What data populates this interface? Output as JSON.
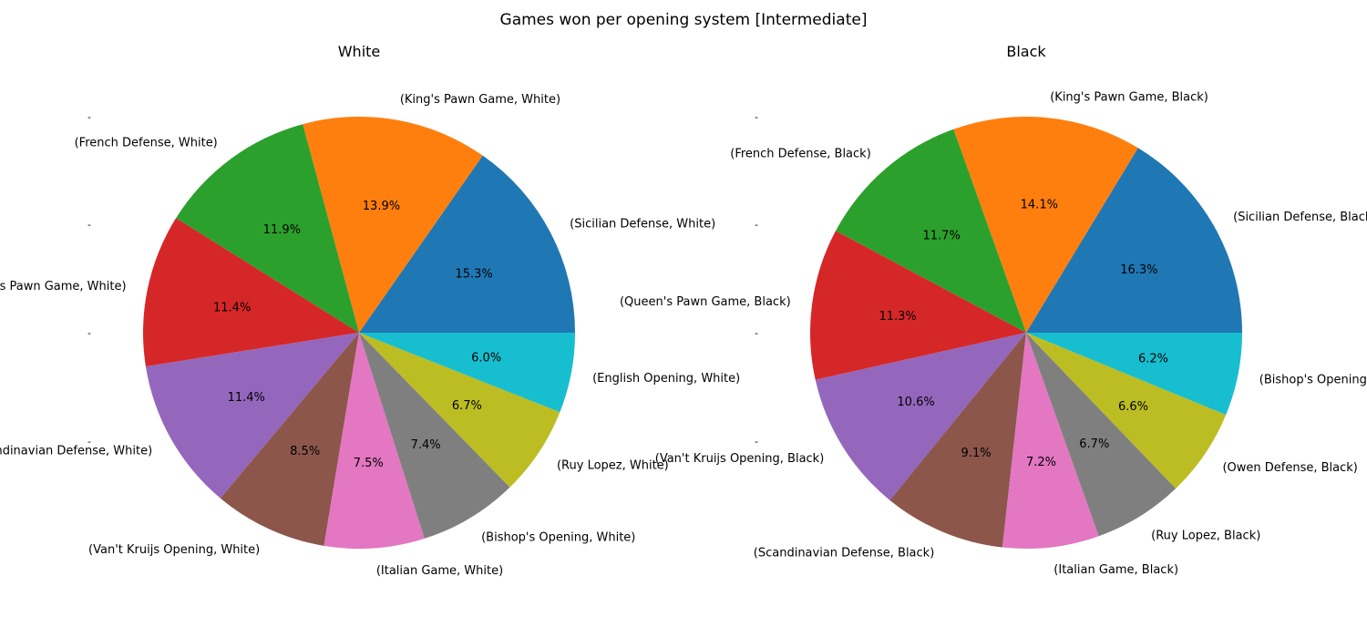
{
  "figure": {
    "title": "Games won per opening system [Intermediate]"
  },
  "chart_data": [
    {
      "type": "pie",
      "title": "White",
      "ylabel": "-",
      "labels": [
        "(Sicilian Defense, White)",
        "(King's Pawn Game, White)",
        "(French Defense, White)",
        "(Queen's Pawn Game, White)",
        "(Scandinavian Defense, White)",
        "(Van't Kruijs Opening, White)",
        "(Italian Game, White)",
        "(Bishop's Opening, White)",
        "(Ruy Lopez, White)",
        "(English Opening, White)"
      ],
      "values": [
        15.3,
        13.9,
        11.9,
        11.4,
        11.4,
        8.5,
        7.5,
        7.4,
        6.7,
        6.0
      ],
      "pct_labels": [
        "15.3%",
        "13.9%",
        "11.9%",
        "11.4%",
        "11.4%",
        "8.5%",
        "7.5%",
        "7.4%",
        "6.7%",
        "6.0%"
      ],
      "colors": [
        "#1f77b4",
        "#ff7f0e",
        "#2ca02c",
        "#d62728",
        "#9467bd",
        "#8c564b",
        "#e377c2",
        "#7f7f7f",
        "#bcbd22",
        "#17becf"
      ]
    },
    {
      "type": "pie",
      "title": "Black",
      "ylabel": "-",
      "labels": [
        "(Sicilian Defense, Black)",
        "(King's Pawn Game, Black)",
        "(French Defense, Black)",
        "(Queen's Pawn Game, Black)",
        "(Van't Kruijs Opening, Black)",
        "(Scandinavian Defense, Black)",
        "(Italian Game, Black)",
        "(Ruy Lopez, Black)",
        "(Owen Defense, Black)",
        "(Bishop's Opening, Black)"
      ],
      "values": [
        16.3,
        14.1,
        11.7,
        11.3,
        10.6,
        9.1,
        7.2,
        6.7,
        6.6,
        6.2
      ],
      "pct_labels": [
        "16.3%",
        "14.1%",
        "11.7%",
        "11.3%",
        "10.6%",
        "9.1%",
        "7.2%",
        "6.7%",
        "6.6%",
        "6.2%"
      ],
      "colors": [
        "#1f77b4",
        "#ff7f0e",
        "#2ca02c",
        "#d62728",
        "#9467bd",
        "#8c564b",
        "#e377c2",
        "#7f7f7f",
        "#bcbd22",
        "#17becf"
      ]
    }
  ]
}
